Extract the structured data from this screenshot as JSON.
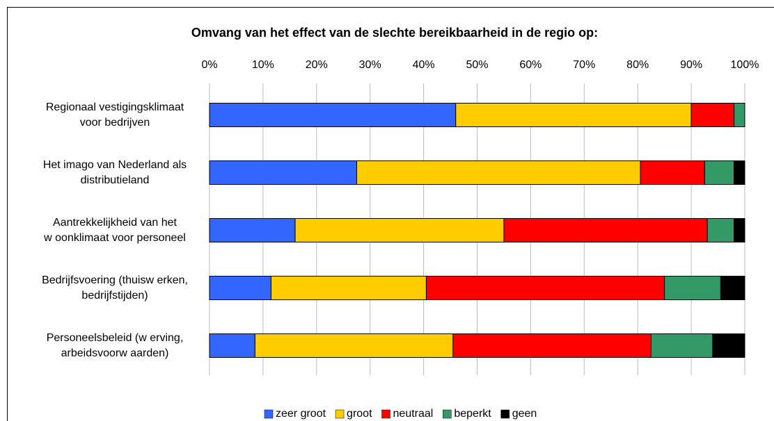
{
  "chart_data": {
    "type": "stacked-barh",
    "title": "Omvang van het effect van de slechte bereikbaarheid in de regio op:",
    "categories": [
      "Regionaal vestigingsklimaat\nvoor bedrijven",
      "Het imago van Nederland als\ndistributieland",
      "Aantrekkelijkheid van het\nw oonklimaat voor personeel",
      "Bedrijfsvoering (thuisw erken,\nbedrijfstijden)",
      "Personeelsbeleid (w erving,\narbeidsvoorw aarden)"
    ],
    "series": [
      {
        "name": "zeer groot",
        "color": "#3366ff",
        "values": [
          46,
          27.5,
          16,
          11.5,
          8.5
        ]
      },
      {
        "name": "groot",
        "color": "#ffcc00",
        "values": [
          44,
          53,
          39,
          29,
          37
        ]
      },
      {
        "name": "neutraal",
        "color": "#ff0000",
        "values": [
          8,
          12,
          38,
          44.5,
          37
        ]
      },
      {
        "name": "beperkt",
        "color": "#339966",
        "values": [
          2,
          5.5,
          5,
          10.5,
          11.5
        ]
      },
      {
        "name": "geen",
        "color": "#000000",
        "values": [
          0,
          2,
          2,
          4.5,
          6
        ]
      }
    ],
    "xlim": [
      0,
      100
    ],
    "xticks": [
      {
        "value": 0,
        "label": "0%"
      },
      {
        "value": 10,
        "label": "10%"
      },
      {
        "value": 20,
        "label": "20%"
      },
      {
        "value": 30,
        "label": "30%"
      },
      {
        "value": 40,
        "label": "40%"
      },
      {
        "value": 50,
        "label": "50%"
      },
      {
        "value": 60,
        "label": "60%"
      },
      {
        "value": 70,
        "label": "70%"
      },
      {
        "value": 80,
        "label": "80%"
      },
      {
        "value": 90,
        "label": "90%"
      },
      {
        "value": 100,
        "label": "100%"
      }
    ],
    "grid": true,
    "legend": "bottom"
  }
}
